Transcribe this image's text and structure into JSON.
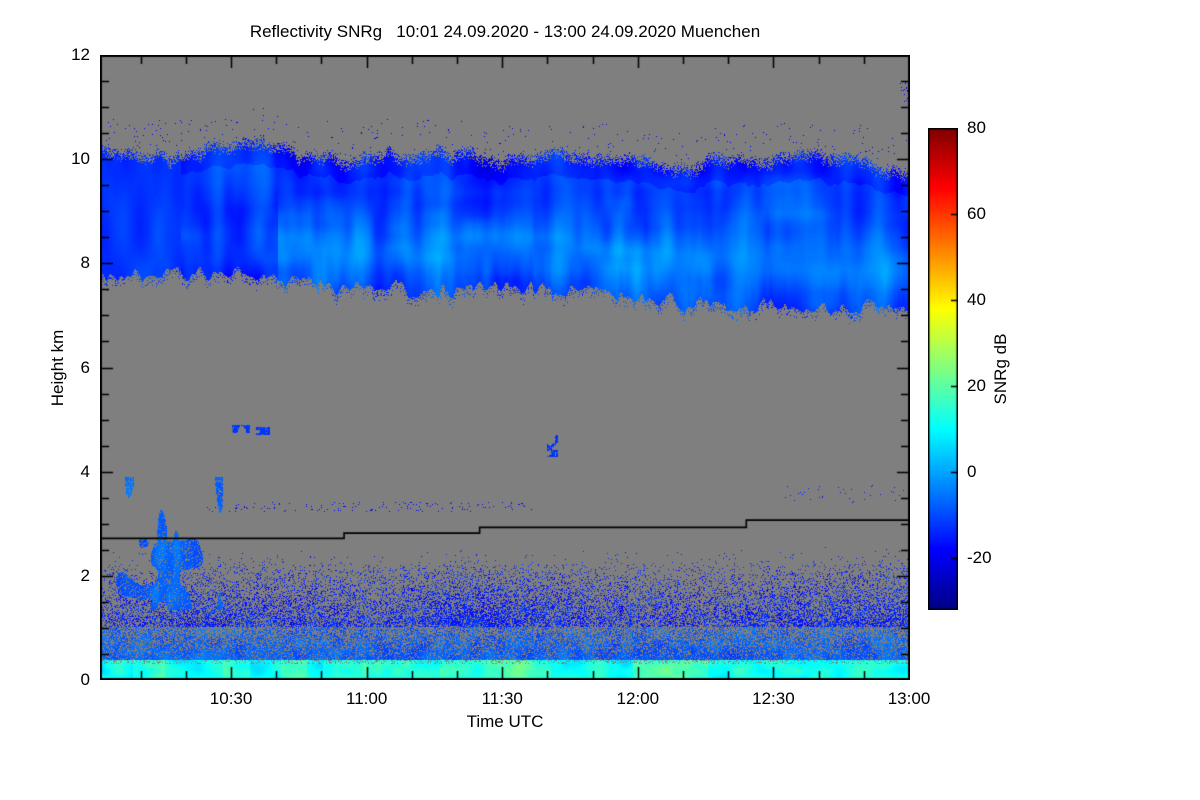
{
  "chart_data": {
    "type": "heatmap",
    "title": "Reflectivity SNRg   10:01 24.09.2020 - 13:00 24.09.2020 Muenchen",
    "xlabel": "Time UTC",
    "ylabel": "Height km",
    "x_start": "10:01",
    "x_end": "13:00",
    "x_total_minutes": 179,
    "x_ticks": [
      {
        "label": "10:30",
        "minute": 29
      },
      {
        "label": "11:00",
        "minute": 59
      },
      {
        "label": "11:30",
        "minute": 89
      },
      {
        "label": "12:00",
        "minute": 119
      },
      {
        "label": "12:30",
        "minute": 149
      },
      {
        "label": "13:00",
        "minute": 179
      }
    ],
    "x_minor_every_minutes": 10,
    "y_ticks": [
      0,
      2,
      4,
      6,
      8,
      10,
      12
    ],
    "y_minor_step_km": 0.5,
    "ylim": [
      0,
      12
    ],
    "grid": false,
    "no_data_color": "#7f7f7f",
    "background_color": "#ffffff",
    "frame_color": "#000000",
    "colorbar": {
      "label": "SNRg dB",
      "ticks": [
        80,
        60,
        40,
        20,
        0,
        -20
      ],
      "vmin": -32,
      "vmax": 80,
      "stops": [
        {
          "p": 0.0,
          "c": "#000083"
        },
        {
          "p": 0.125,
          "c": "#0000ff"
        },
        {
          "p": 0.375,
          "c": "#00ffff"
        },
        {
          "p": 0.625,
          "c": "#ffff00"
        },
        {
          "p": 0.875,
          "c": "#ff0000"
        },
        {
          "p": 1.0,
          "c": "#800000"
        }
      ]
    },
    "features": {
      "cloud_band": {
        "top_km_start": 10.35,
        "top_km_end": 9.9,
        "bottom_km_start": 7.8,
        "bottom_km_end": 7.1,
        "value_db_range": [
          -26,
          8
        ]
      },
      "surface_layer": {
        "speckle_top_km": 2.55,
        "dense_top_km": 1.02,
        "bright_top_km": 0.38,
        "value_db_range": [
          -24,
          26
        ]
      },
      "left_streaks": {
        "t_end_min": 27,
        "h_min_km": 1.35,
        "h_max_km": 3.9
      },
      "mid_patches": [
        {
          "minute": 31,
          "height_km": 4.82,
          "w_min": 4.0,
          "h_km": 0.16
        },
        {
          "minute": 36,
          "height_km": 4.78,
          "w_min": 3.0,
          "h_km": 0.14
        },
        {
          "minute": 100,
          "height_km": 4.5,
          "w_min": 2.6,
          "h_km": 0.42
        }
      ],
      "thin_layer": {
        "height_km": 3.32,
        "m0": 23,
        "m1": 97
      },
      "boundary_line": {
        "color": "#000000",
        "segments": [
          {
            "m0": 0,
            "m1": 54,
            "h": 2.72
          },
          {
            "m0": 54,
            "m1": 84,
            "h": 2.82
          },
          {
            "m0": 84,
            "m1": 143,
            "h": 2.93
          },
          {
            "m0": 143,
            "m1": 179,
            "h": 3.07
          }
        ]
      }
    },
    "seed": 7
  }
}
